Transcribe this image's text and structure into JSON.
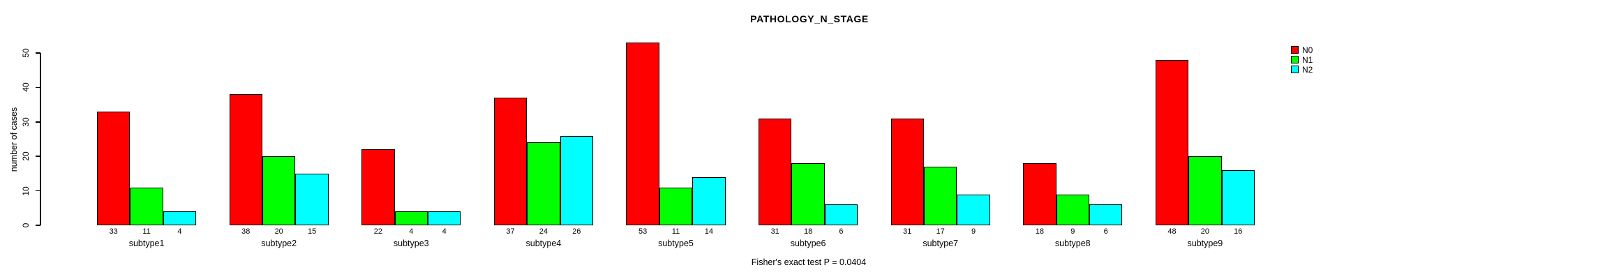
{
  "chart_data": {
    "type": "bar",
    "title": "PATHOLOGY_N_STAGE",
    "ylabel": "number of cases",
    "xlabel": "",
    "categories": [
      "subtype1",
      "subtype2",
      "subtype3",
      "subtype4",
      "subtype5",
      "subtype6",
      "subtype7",
      "subtype8",
      "subtype9"
    ],
    "series": [
      {
        "name": "N0",
        "color": "#FF0000",
        "values": [
          33,
          38,
          22,
          37,
          53,
          31,
          31,
          18,
          48
        ]
      },
      {
        "name": "N1",
        "color": "#00FF00",
        "values": [
          11,
          20,
          4,
          24,
          11,
          18,
          17,
          9,
          20
        ]
      },
      {
        "name": "N2",
        "color": "#00FFFF",
        "values": [
          4,
          15,
          4,
          26,
          14,
          6,
          9,
          6,
          16
        ]
      }
    ],
    "yticks": [
      0,
      10,
      20,
      30,
      40,
      50
    ],
    "ylim": [
      0,
      50
    ],
    "bar_value_labels": true,
    "grid": false,
    "legend_position": "right",
    "footnote": "Fisher's exact test P = 0.0404"
  }
}
